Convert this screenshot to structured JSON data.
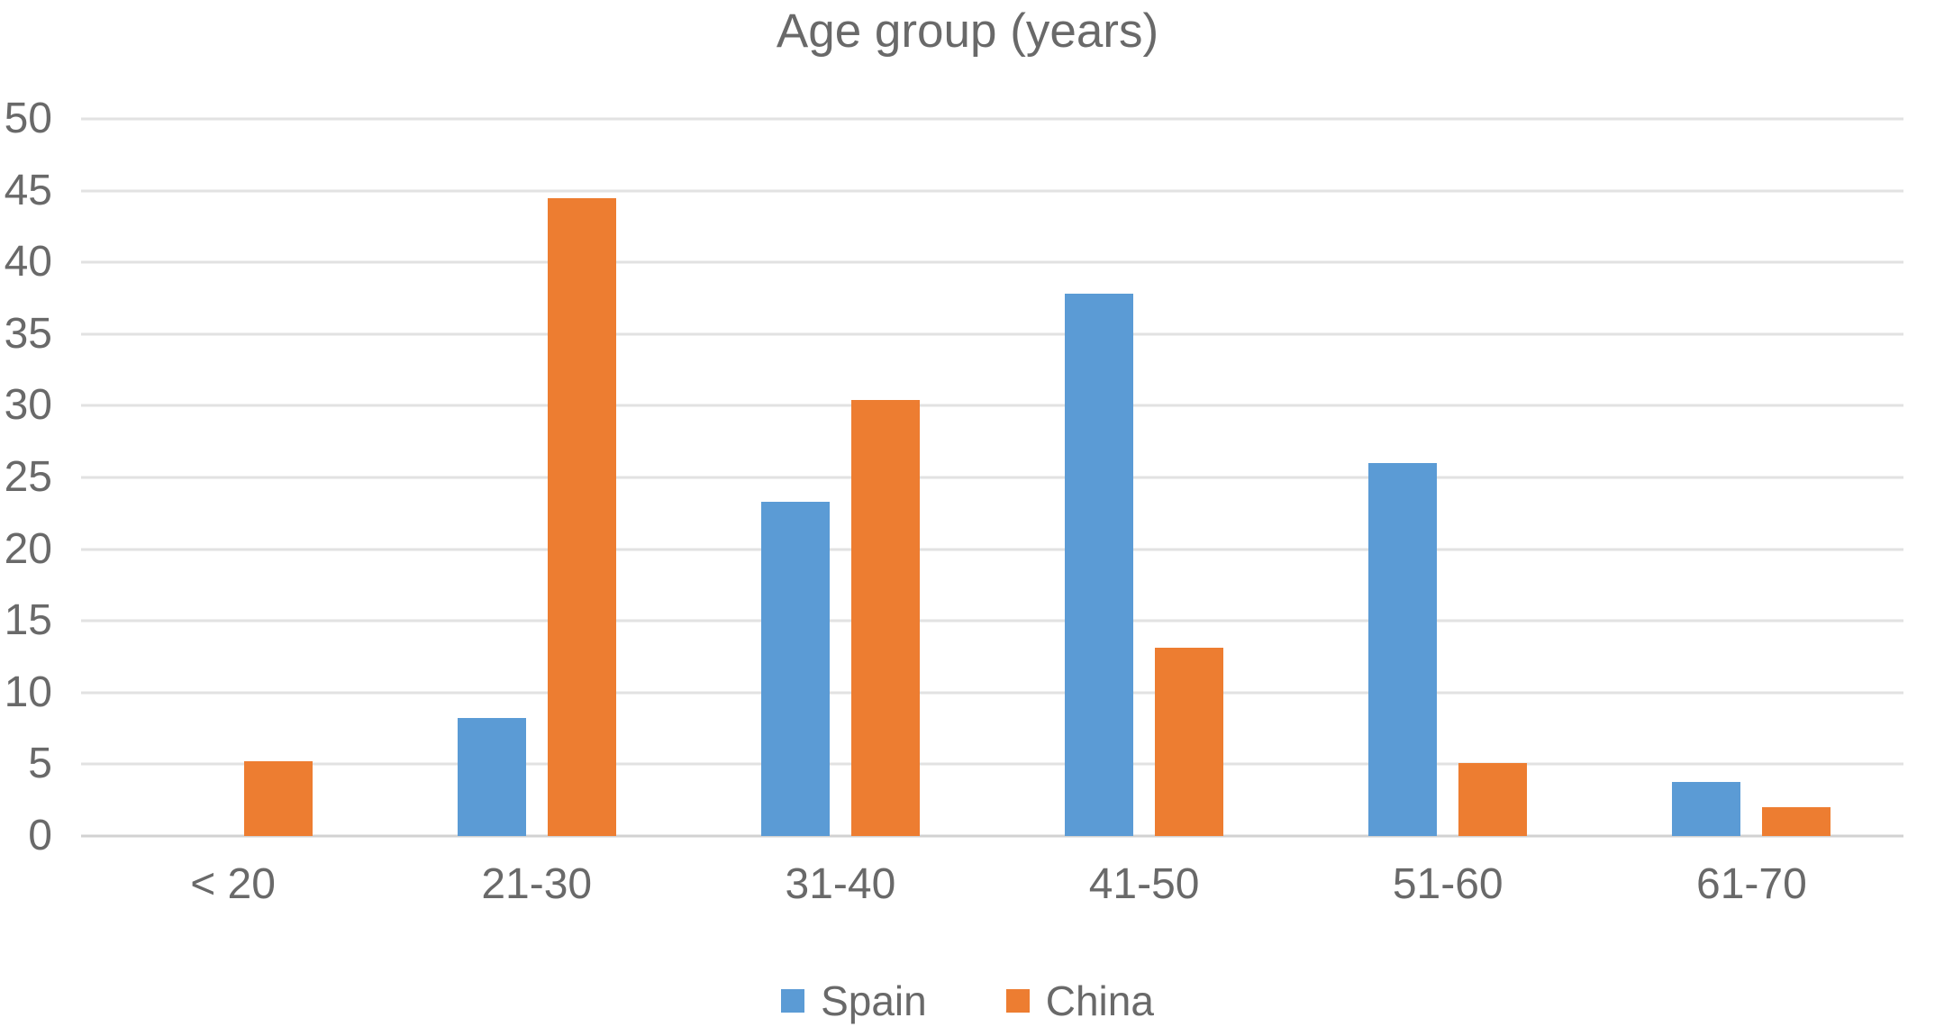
{
  "chart_data": {
    "type": "bar",
    "title": "Age group (years)",
    "categories": [
      "< 20",
      "21-30",
      "31-40",
      "41-50",
      "51-60",
      "61-70"
    ],
    "series": [
      {
        "name": "Spain",
        "color": "#5B9BD5",
        "values": [
          0,
          8.2,
          23.3,
          37.8,
          26.0,
          3.8
        ]
      },
      {
        "name": "China",
        "color": "#ED7D31",
        "values": [
          5.2,
          44.5,
          30.4,
          13.1,
          5.1,
          2.0
        ]
      }
    ],
    "xlabel": "",
    "ylabel": "",
    "ylim": [
      0,
      50
    ],
    "yticks": [
      0,
      5,
      10,
      15,
      20,
      25,
      30,
      35,
      40,
      45,
      50
    ],
    "grid": true,
    "legend_position": "bottom",
    "colors": {
      "text": "#696969",
      "gridline": "#e2e2e2",
      "baseline": "#d2d2d2",
      "background": "#ffffff"
    }
  }
}
